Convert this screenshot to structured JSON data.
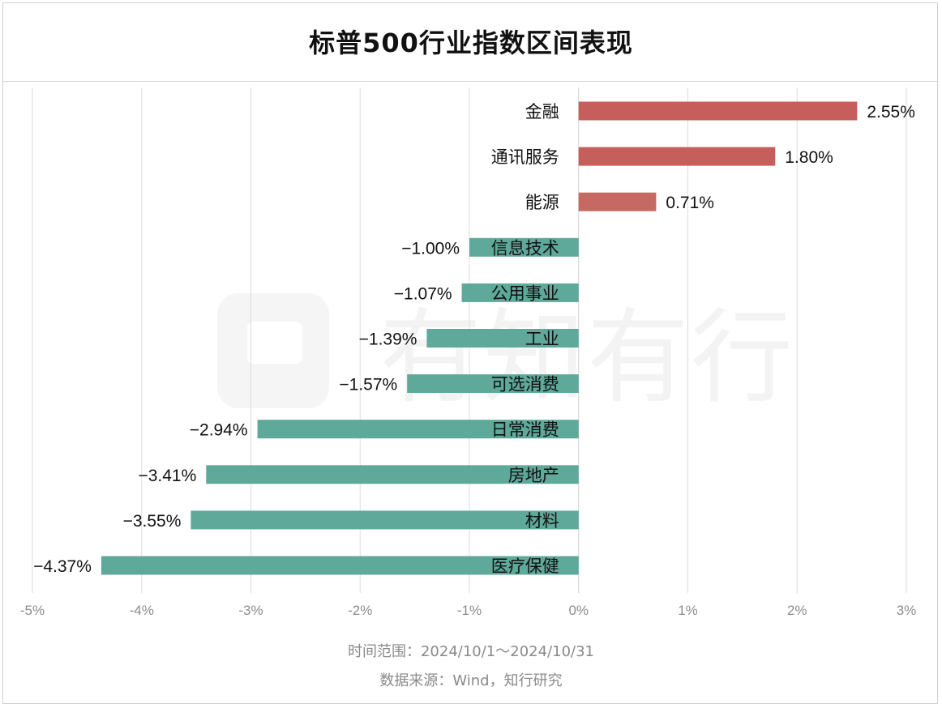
{
  "title": "标普500行业指数区间表现",
  "footer": {
    "time_range": "时间范围：2024/10/1～2024/10/31",
    "source": "数据来源：Wind，知行研究"
  },
  "watermark": "有知有行",
  "colors": {
    "positive_dark": "#c65e5b",
    "positive_light": "#c56963",
    "negative": "#5fa99a",
    "grid": "#dddddd",
    "tick": "#8c8c8c",
    "label": "#111111"
  },
  "chart_data": {
    "type": "bar",
    "orientation": "horizontal",
    "categories": [
      "金融",
      "通讯服务",
      "能源",
      "信息技术",
      "公用事业",
      "工业",
      "可选消费",
      "日常消费",
      "房地产",
      "材料",
      "医疗保健"
    ],
    "values": [
      2.55,
      1.8,
      0.71,
      -1.0,
      -1.07,
      -1.39,
      -1.57,
      -2.94,
      -3.41,
      -3.55,
      -4.37
    ],
    "data_labels": [
      "2.55%",
      "1.80%",
      "0.71%",
      "−1.00%",
      "−1.07%",
      "−1.39%",
      "−1.57%",
      "−2.94%",
      "−3.41%",
      "−3.55%",
      "−4.37%"
    ],
    "x_ticks": [
      -5,
      -4,
      -3,
      -2,
      -1,
      0,
      1,
      2,
      3
    ],
    "x_tick_labels": [
      "-5%",
      "-4%",
      "-3%",
      "-2%",
      "-1%",
      "0%",
      "1%",
      "2%",
      "3%"
    ],
    "xlim": [
      -5,
      3
    ],
    "grid": true,
    "legend": "none"
  }
}
